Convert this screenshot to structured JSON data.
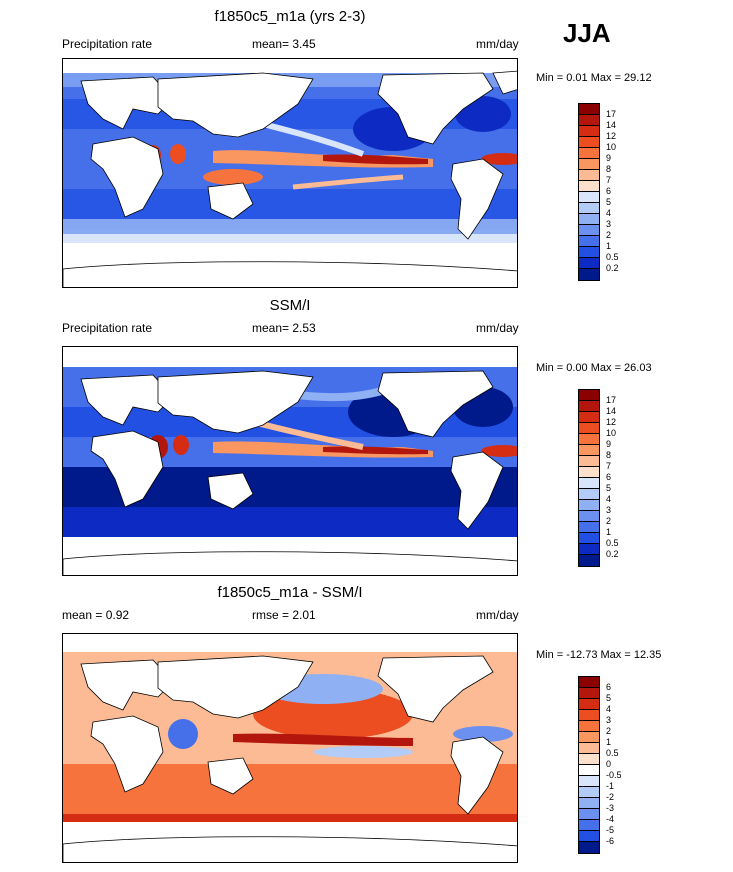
{
  "season": "JJA",
  "panels": [
    {
      "title": "f1850c5_m1a (yrs 2-3)",
      "left_label": "Precipitation rate",
      "mid_label": "mean=   3.45",
      "right_label": "mm/day",
      "minmax": "Min =   0.01 Max =  29.12",
      "colorbar_labels": [
        "17",
        "14",
        "12",
        "10",
        "9",
        "8",
        "7",
        "6",
        "5",
        "4",
        "3",
        "2",
        "1",
        "0.5",
        "0.2"
      ],
      "colors": [
        "#8b0000",
        "#b3160c",
        "#d42d13",
        "#ec4e22",
        "#f6733d",
        "#fa9660",
        "#fcbb94",
        "#fde0cc",
        "#d8e5fb",
        "#b3ccf7",
        "#8fb0f3",
        "#6b90ef",
        "#4670ea",
        "#2150e3",
        "#0d2bc2",
        "#001a8c"
      ]
    },
    {
      "title": "SSM/I",
      "left_label": "Precipitation rate",
      "mid_label": "mean=   2.53",
      "right_label": "mm/day",
      "minmax": "Min =   0.00 Max =  26.03",
      "colorbar_labels": [
        "17",
        "14",
        "12",
        "10",
        "9",
        "8",
        "7",
        "6",
        "5",
        "4",
        "3",
        "2",
        "1",
        "0.5",
        "0.2"
      ],
      "colors": [
        "#8b0000",
        "#b3160c",
        "#d42d13",
        "#ec4e22",
        "#f6733d",
        "#fa9660",
        "#fcbb94",
        "#fde0cc",
        "#d8e5fb",
        "#b3ccf7",
        "#8fb0f3",
        "#6b90ef",
        "#4670ea",
        "#2150e3",
        "#0d2bc2",
        "#001a8c"
      ]
    },
    {
      "title": "f1850c5_m1a - SSM/I",
      "left_label": "mean =   0.92",
      "mid_label": "rmse =   2.01",
      "right_label": "mm/day",
      "minmax": "Min = -12.73 Max =  12.35",
      "colorbar_labels": [
        "6",
        "5",
        "4",
        "3",
        "2",
        "1",
        "0.5",
        "0",
        "-0.5",
        "-1",
        "-2",
        "-3",
        "-4",
        "-5",
        "-6"
      ],
      "colors": [
        "#8b0000",
        "#b3160c",
        "#d42d13",
        "#ec4e22",
        "#f6733d",
        "#fa9660",
        "#fcbb94",
        "#fde0cc",
        "#ffffff",
        "#d8e5fb",
        "#b3ccf7",
        "#8fb0f3",
        "#6b90ef",
        "#4670ea",
        "#2150e3",
        "#001a8c"
      ]
    }
  ]
}
